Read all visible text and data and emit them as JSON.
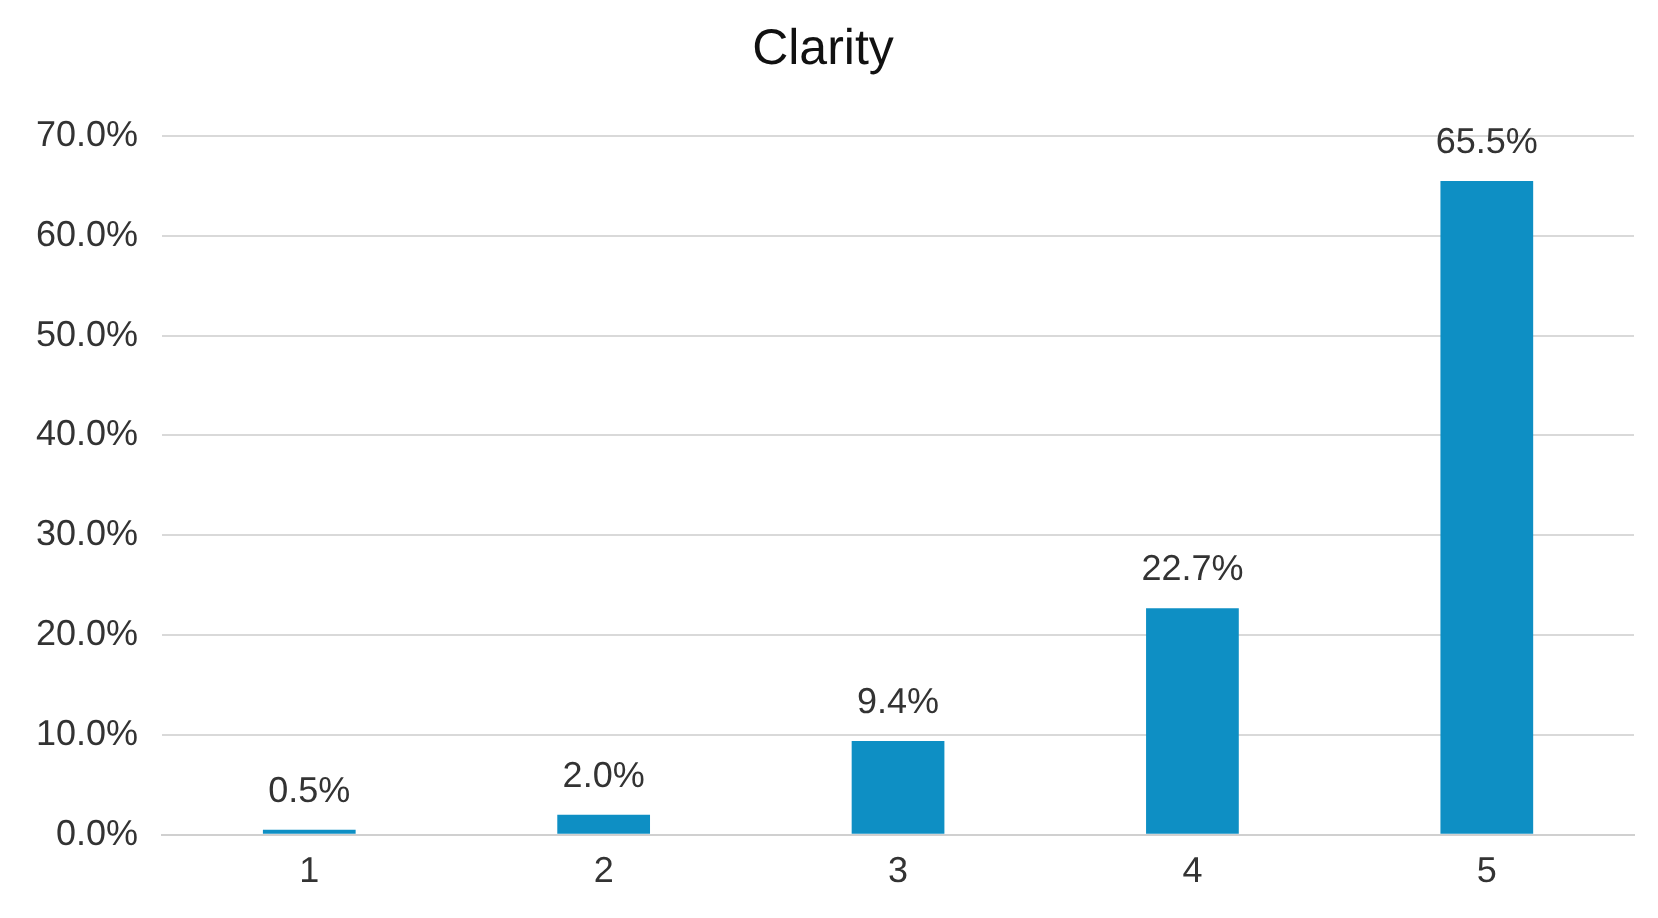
{
  "chart_data": {
    "type": "bar",
    "title": "Clarity",
    "categories": [
      "1",
      "2",
      "3",
      "4",
      "5"
    ],
    "values": [
      0.5,
      2.0,
      9.4,
      22.7,
      65.5
    ],
    "value_labels": [
      "0.5%",
      "2.0%",
      "9.4%",
      "22.7%",
      "65.5%"
    ],
    "color": "#0e8fc4",
    "ylim": [
      0,
      70
    ],
    "yticks": [
      {
        "value": 0,
        "label": "0.0%"
      },
      {
        "value": 10,
        "label": "10.0%"
      },
      {
        "value": 20,
        "label": "20.0%"
      },
      {
        "value": 30,
        "label": "30.0%"
      },
      {
        "value": 40,
        "label": "40.0%"
      },
      {
        "value": 50,
        "label": "50.0%"
      },
      {
        "value": 60,
        "label": "60.0%"
      },
      {
        "value": 70,
        "label": "70.0%"
      }
    ],
    "grid": "y",
    "legend": false
  }
}
